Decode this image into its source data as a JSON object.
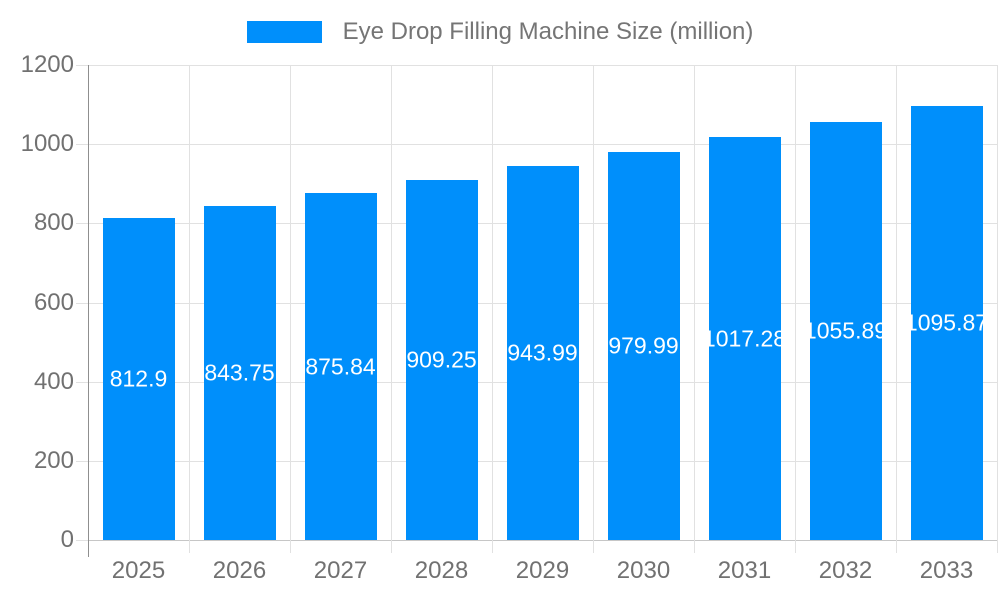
{
  "legend": {
    "series_label": "Eye Drop Filling Machine Size (million)"
  },
  "chart_data": {
    "type": "bar",
    "title": "Eye Drop Filling Machine Size (million)",
    "series_name": "Eye Drop Filling Machine Size (million)",
    "categories": [
      "2025",
      "2026",
      "2027",
      "2028",
      "2029",
      "2030",
      "2031",
      "2032",
      "2033"
    ],
    "values": [
      812.9,
      843.75,
      875.84,
      909.25,
      943.99,
      979.99,
      1017.28,
      1055.89,
      1095.87
    ],
    "xlabel": "",
    "ylabel": "",
    "ylim": [
      0,
      1200
    ],
    "yticks": [
      0,
      200,
      400,
      600,
      800,
      1000,
      1200
    ],
    "grid": true,
    "legend_position": "top",
    "colors": {
      "bar": "#008ffb",
      "data_label": "#ffffff",
      "axis_label": "#717171",
      "legend_label": "#757575",
      "grid": "#e1e1e1",
      "baseline": "#c6c6c6",
      "axis_line": "#8f8f8f"
    }
  }
}
